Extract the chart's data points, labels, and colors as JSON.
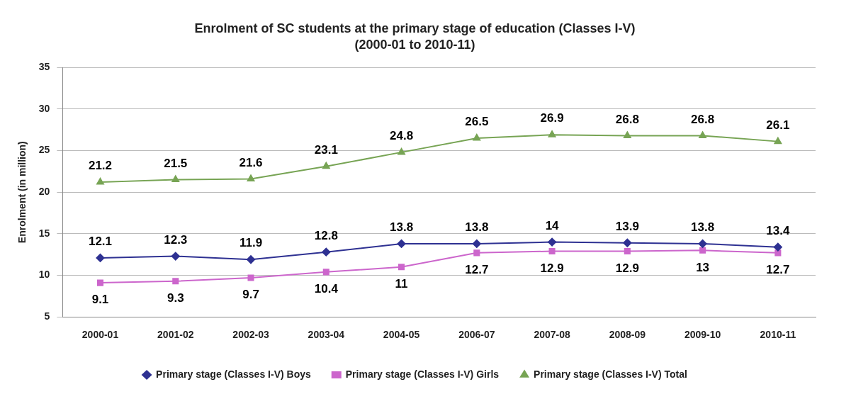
{
  "chart_data": {
    "type": "line",
    "title": "Enrolment of SC students at the primary stage of education (Classes I-V)",
    "subtitle": "(2000-01 to 2010-11)",
    "ylabel": "Enrolment (in million)",
    "categories": [
      "2000-01",
      "2001-02",
      "2002-03",
      "2003-04",
      "2004-05",
      "2006-07",
      "2007-08",
      "2008-09",
      "2009-10",
      "2010-11"
    ],
    "series": [
      {
        "name": "Primary stage (Classes I-V) Boys",
        "color": "#2e3192",
        "marker": "diamond",
        "values": [
          12.1,
          12.3,
          11.9,
          12.8,
          13.8,
          13.8,
          14,
          13.9,
          13.8,
          13.4
        ]
      },
      {
        "name": "Primary stage (Classes I-V) Girls",
        "color": "#cc66cc",
        "marker": "square",
        "values": [
          9.1,
          9.3,
          9.7,
          10.4,
          11,
          12.7,
          12.9,
          12.9,
          13,
          12.7
        ]
      },
      {
        "name": "Primary stage (Classes I-V) Total",
        "color": "#77a454",
        "marker": "triangle",
        "values": [
          21.2,
          21.5,
          21.6,
          23.1,
          24.8,
          26.5,
          26.9,
          26.8,
          26.8,
          26.1
        ]
      }
    ],
    "ylim": [
      5,
      35
    ],
    "yticks": [
      5,
      10,
      15,
      20,
      25,
      30,
      35
    ],
    "grid": "y",
    "legend": "bottom",
    "data_labels": true,
    "line_style": "solid"
  }
}
